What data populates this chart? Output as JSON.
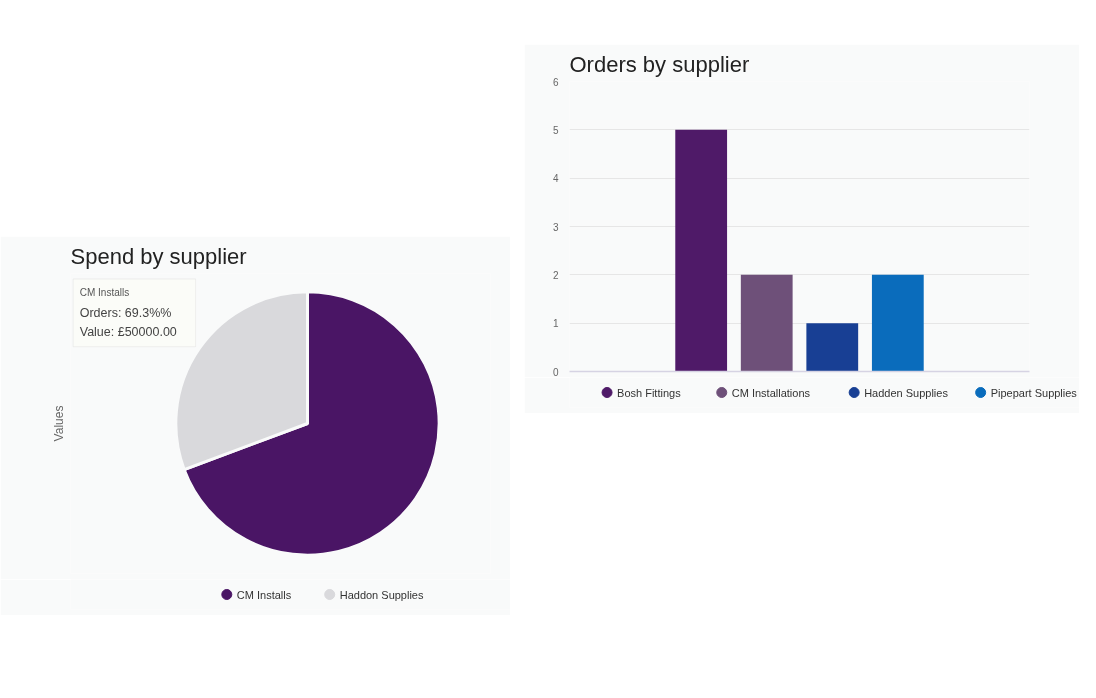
{
  "chart_data": [
    {
      "type": "pie",
      "title": "Spend by supplier",
      "ylabel": "Values",
      "categories": [
        "CM Installs",
        "Haddon Supplies"
      ],
      "values": [
        69.3,
        30.7
      ],
      "colors": [
        "#4a1565",
        "#d9d9dc"
      ],
      "legend": "bottom",
      "annotations": [
        "CM Installs",
        "Orders: 69.3%%",
        "Value: £50000.00"
      ]
    },
    {
      "type": "bar",
      "title": "Orders by supplier",
      "categories": [
        null
      ],
      "series": [
        {
          "name": "Bosh Fittings",
          "color": "#4f1a68",
          "values": [
            5
          ]
        },
        {
          "name": "CM Installations",
          "color": "#6e5079",
          "values": [
            2
          ]
        },
        {
          "name": "Hadden Supplies",
          "color": "#183f94",
          "values": [
            1
          ]
        },
        {
          "name": "Pipepart Supplies",
          "color": "#0a6cbc",
          "values": [
            2
          ]
        }
      ],
      "ylim": [
        0,
        6
      ],
      "yticks": [
        0,
        1,
        2,
        3,
        4,
        5,
        6
      ],
      "grid": "y",
      "legend": "bottom",
      "tick_labels": "y"
    }
  ]
}
